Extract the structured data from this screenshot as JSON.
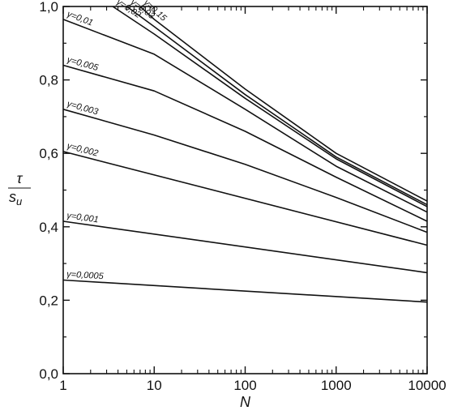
{
  "chart_data": {
    "type": "line",
    "title": "",
    "xlabel": "N",
    "ylabel_numerator": "τ",
    "ylabel_denominator": "s",
    "ylabel_denominator_sub": "u",
    "xscale": "log",
    "xlim": [
      1,
      10000
    ],
    "ylim": [
      0.0,
      1.0
    ],
    "grid": false,
    "x_ticks": [
      {
        "value": 1,
        "label": "1"
      },
      {
        "value": 10,
        "label": "10"
      },
      {
        "value": 100,
        "label": "100"
      },
      {
        "value": 1000,
        "label": "1000"
      },
      {
        "value": 10000,
        "label": "10000"
      }
    ],
    "y_ticks": [
      {
        "value": 0.0,
        "label": "0,0"
      },
      {
        "value": 0.2,
        "label": "0,2"
      },
      {
        "value": 0.4,
        "label": "0,4"
      },
      {
        "value": 0.6,
        "label": "0,6"
      },
      {
        "value": 0.8,
        "label": "0,8"
      },
      {
        "value": 1.0,
        "label": "1,0"
      }
    ],
    "series": [
      {
        "name": "γ=0,0005",
        "x": [
          1,
          10000
        ],
        "y": [
          0.255,
          0.195
        ]
      },
      {
        "name": "γ=0,001",
        "x": [
          1,
          10000
        ],
        "y": [
          0.415,
          0.275
        ]
      },
      {
        "name": "γ=0,002",
        "x": [
          1,
          10000
        ],
        "y": [
          0.605,
          0.35
        ]
      },
      {
        "name": "γ=0,003",
        "x": [
          1,
          10,
          100,
          1000,
          10000
        ],
        "y": [
          0.72,
          0.65,
          0.57,
          0.48,
          0.385
        ]
      },
      {
        "name": "γ=0,005",
        "x": [
          1,
          10,
          100,
          1000,
          10000
        ],
        "y": [
          0.84,
          0.77,
          0.66,
          0.535,
          0.415
        ]
      },
      {
        "name": "γ=0,01",
        "x": [
          1,
          10,
          100,
          1000,
          10000
        ],
        "y": [
          0.965,
          0.87,
          0.72,
          0.565,
          0.44
        ]
      },
      {
        "name": "γ=0,02",
        "x": [
          3.5,
          10,
          100,
          1000,
          10000
        ],
        "y": [
          1.0,
          0.925,
          0.75,
          0.585,
          0.455
        ]
      },
      {
        "name": "γ=0,03",
        "x": [
          5,
          10,
          100,
          1000,
          10000
        ],
        "y": [
          1.0,
          0.945,
          0.76,
          0.59,
          0.46
        ]
      },
      {
        "name": "γ=0,15",
        "x": [
          7,
          10,
          100,
          1000,
          10000
        ],
        "y": [
          1.0,
          0.965,
          0.775,
          0.6,
          0.47
        ]
      }
    ]
  }
}
